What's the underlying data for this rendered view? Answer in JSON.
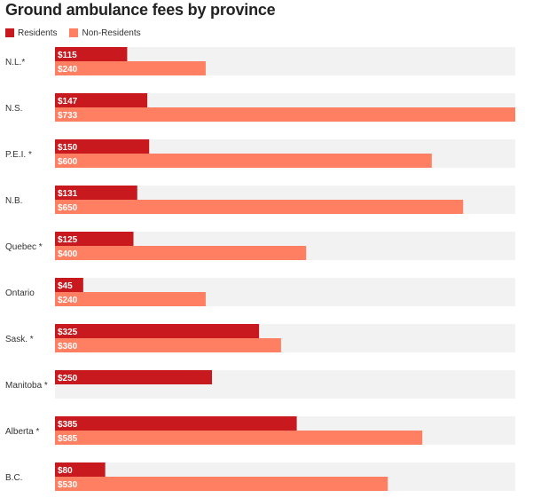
{
  "chart_data": {
    "type": "bar",
    "orientation": "horizontal",
    "title": "Ground ambulance fees by province",
    "xlim": [
      0,
      733
    ],
    "grid": false,
    "legend_position": "top-left",
    "categories": [
      "N.L.*",
      "N.S.",
      "P.E.I. *",
      "N.B.",
      "Quebec *",
      "Ontario",
      "Sask. *",
      "Manitoba *",
      "Alberta *",
      "B.C."
    ],
    "series": [
      {
        "name": "Residents",
        "color": "#c8191e",
        "values": [
          115,
          147,
          150,
          131,
          125,
          45,
          325,
          250,
          385,
          80
        ],
        "labels": [
          "$115",
          "$147",
          "$150",
          "$131",
          "$125",
          "$45",
          "$325",
          "$250",
          "$385",
          "$80"
        ]
      },
      {
        "name": "Non-Residents",
        "color": "#ff7f63",
        "values": [
          240,
          733,
          600,
          650,
          400,
          240,
          360,
          null,
          585,
          530
        ],
        "labels": [
          "$240",
          "$733",
          "$600",
          "$650",
          "$400",
          "$240",
          "$360",
          "",
          "$585",
          "$530"
        ]
      }
    ],
    "row_background_color": "#f2f2f2"
  }
}
